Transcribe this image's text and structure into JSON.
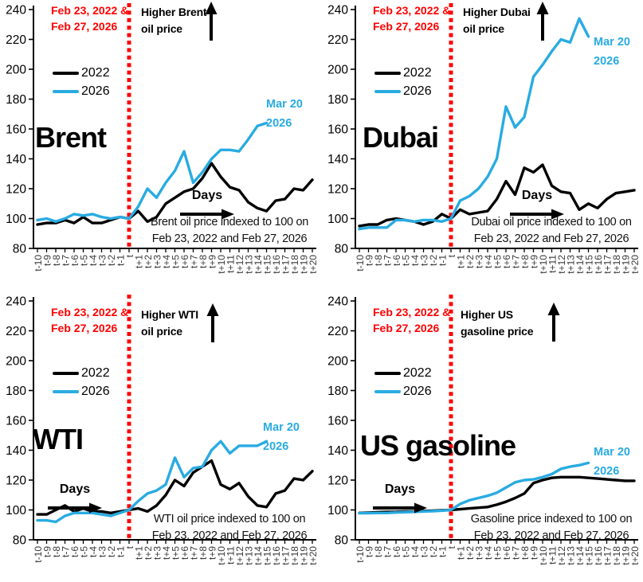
{
  "colors": {
    "line_2022": "#000000",
    "line_2026": "#29abe2",
    "event_red": "#ff0000",
    "axis": "#000000",
    "x_tick_label": "#3a3a3a"
  },
  "chart_data": [
    {
      "type": "line",
      "title": "Brent",
      "x": [
        "t-10",
        "t-9",
        "t-8",
        "t-7",
        "t-6",
        "t-5",
        "t-4",
        "t-3",
        "t-2",
        "t-1",
        "t",
        "t+1",
        "t+2",
        "t+3",
        "t+4",
        "t+5",
        "t+6",
        "t+7",
        "t+8",
        "t+9",
        "t+10",
        "t+11",
        "t+12",
        "t+13",
        "t+14",
        "t+15",
        "t+16",
        "t+17",
        "t+18",
        "t+19",
        "t+20"
      ],
      "xlabel": "Days",
      "ylim": [
        80,
        240
      ],
      "yticks": [
        80,
        100,
        120,
        140,
        160,
        180,
        200,
        220,
        240
      ],
      "legend_position": "upper-left",
      "grid": false,
      "event_line_x": "t",
      "event_line_color": "#ff0000",
      "series": [
        {
          "name": "2022",
          "color": "#000000",
          "values": [
            96,
            97,
            97,
            99,
            97,
            101,
            97,
            97,
            99,
            101,
            100,
            105,
            98,
            101,
            110,
            114,
            118,
            120,
            127,
            137,
            128,
            121,
            119,
            111,
            107,
            105,
            112,
            113,
            120,
            119,
            126
          ]
        },
        {
          "name": "2026",
          "color": "#29abe2",
          "values": [
            99,
            100,
            98,
            100,
            103,
            102,
            103,
            101,
            100,
            101,
            100,
            108,
            120,
            114,
            124,
            132,
            145,
            124,
            131,
            140,
            146,
            146,
            145,
            153,
            162,
            164
          ]
        }
      ]
    },
    {
      "type": "line",
      "title": "Dubai",
      "x": [
        "t-10",
        "t-9",
        "t-8",
        "t-7",
        "t-6",
        "t-5",
        "t-4",
        "t-3",
        "t-2",
        "t-1",
        "t",
        "t+1",
        "t+2",
        "t+3",
        "t+4",
        "t+5",
        "t+6",
        "t+7",
        "t+8",
        "t+9",
        "t+10",
        "t+11",
        "t+12",
        "t+13",
        "t+14",
        "t+15",
        "t+16",
        "t+17",
        "t+18",
        "t+19",
        "t+20"
      ],
      "xlabel": "Days",
      "ylim": [
        80,
        240
      ],
      "yticks": [
        80,
        100,
        120,
        140,
        160,
        180,
        200,
        220,
        240
      ],
      "legend_position": "upper-left",
      "grid": false,
      "event_line_x": "t",
      "event_line_color": "#ff0000",
      "series": [
        {
          "name": "2022",
          "color": "#000000",
          "values": [
            95,
            96,
            96,
            99,
            100,
            99,
            98,
            96,
            98,
            103,
            100,
            106,
            103,
            104,
            105,
            113,
            125,
            116,
            134,
            131,
            136,
            122,
            118,
            117,
            106,
            110,
            107,
            113,
            117,
            118,
            119
          ]
        },
        {
          "name": "2026",
          "color": "#29abe2",
          "values": [
            93,
            94,
            94,
            94,
            99,
            99,
            98,
            99,
            99,
            98,
            100,
            112,
            115,
            120,
            128,
            140,
            175,
            161,
            168,
            195,
            203,
            212,
            220,
            218,
            234,
            222
          ]
        }
      ]
    },
    {
      "type": "line",
      "title": "WTI",
      "x": [
        "t-10",
        "t-9",
        "t-8",
        "t-7",
        "t-6",
        "t-5",
        "t-4",
        "t-3",
        "t-2",
        "t-1",
        "t",
        "t+1",
        "t+2",
        "t+3",
        "t+4",
        "t+5",
        "t+6",
        "t+7",
        "t+8",
        "t+9",
        "t+10",
        "t+11",
        "t+12",
        "t+13",
        "t+14",
        "t+15",
        "t+16",
        "t+17",
        "t+18",
        "t+19",
        "t+20"
      ],
      "xlabel": "Days",
      "ylim": [
        80,
        240
      ],
      "yticks": [
        80,
        100,
        120,
        140,
        160,
        180,
        200,
        220,
        240
      ],
      "legend_position": "upper-left",
      "grid": false,
      "event_line_x": "t",
      "event_line_color": "#ff0000",
      "series": [
        {
          "name": "2022",
          "color": "#000000",
          "values": [
            97,
            97,
            100,
            103,
            99,
            101,
            99,
            99,
            98,
            99,
            100,
            101,
            99,
            103,
            110,
            120,
            116,
            125,
            129,
            133,
            117,
            114,
            118,
            109,
            103,
            102,
            111,
            113,
            121,
            120,
            126
          ]
        },
        {
          "name": "2026",
          "color": "#29abe2",
          "values": [
            93,
            93,
            92,
            96,
            98,
            98,
            98,
            97,
            96,
            98,
            100,
            106,
            111,
            113,
            117,
            135,
            122,
            128,
            129,
            140,
            146,
            138,
            143,
            143,
            143,
            146
          ]
        }
      ]
    },
    {
      "type": "line",
      "title": "US gasoline",
      "x": [
        "t-10",
        "t-9",
        "t-8",
        "t-7",
        "t-6",
        "t-5",
        "t-4",
        "t-3",
        "t-2",
        "t-1",
        "t",
        "t+1",
        "t+2",
        "t+3",
        "t+4",
        "t+5",
        "t+6",
        "t+7",
        "t+8",
        "t+9",
        "t+10",
        "t+11",
        "t+12",
        "t+13",
        "t+14",
        "t+15",
        "t+16",
        "t+17",
        "t+18",
        "t+19",
        "t+20"
      ],
      "xlabel": "Days",
      "ylim": [
        80,
        240
      ],
      "yticks": [
        80,
        100,
        120,
        140,
        160,
        180,
        200,
        220,
        240
      ],
      "legend_position": "upper-left",
      "grid": false,
      "event_line_x": "t",
      "event_line_color": "#ff0000",
      "series": [
        {
          "name": "2022",
          "color": "#000000",
          "values": [
            98,
            98.2,
            98.5,
            98.7,
            98.8,
            99,
            99,
            99.3,
            99.5,
            99.8,
            100,
            100.5,
            101,
            101.5,
            102,
            103.5,
            105.5,
            108,
            111,
            118,
            120,
            121.5,
            122,
            122,
            122,
            121.5,
            121,
            120.5,
            120,
            119.5,
            119.5
          ]
        },
        {
          "name": "2026",
          "color": "#29abe2",
          "values": [
            97.8,
            97.8,
            98,
            98,
            98.3,
            98.5,
            98.7,
            99,
            99.2,
            99.5,
            100,
            104,
            106.5,
            108,
            109.5,
            111.5,
            115,
            118.5,
            120,
            120.5,
            122,
            124,
            127.5,
            129,
            130,
            131.5
          ]
        }
      ]
    }
  ],
  "annotations": [
    {
      "event_line1": "Feb 23, 2022 &",
      "event_line2": "Feb 27, 2026",
      "higher_line1": "Higher Brent",
      "higher_line2": "oil price",
      "mar_line1": "Mar 20",
      "mar_line2": "2026",
      "days_label": "Days",
      "caption_line1": "Brent oil price indexed to 100 on",
      "caption_line2": "Feb 23, 2022 and Feb 27, 2026"
    },
    {
      "event_line1": "Feb 23, 2022 &",
      "event_line2": "Feb 27, 2026",
      "higher_line1": "Higher Dubai",
      "higher_line2": "oil price",
      "mar_line1": "Mar 20",
      "mar_line2": "2026",
      "days_label": "Days",
      "caption_line1": "Dubai oil price indexed to 100 on",
      "caption_line2": "Feb 23, 2022 and Feb 27, 2026"
    },
    {
      "event_line1": "Feb 23, 2022 &",
      "event_line2": "Feb 27, 2026",
      "higher_line1": "Higher WTI",
      "higher_line2": "oil price",
      "mar_line1": "Mar 20",
      "mar_line2": "2026",
      "days_label": "Days",
      "caption_line1": "WTI oil price indexed to 100 on",
      "caption_line2": "Feb 23, 2022 and Feb 27, 2026"
    },
    {
      "event_line1": "Feb 23, 2022 &",
      "event_line2": "Feb 27, 2026",
      "higher_line1": "Higher US",
      "higher_line2": "gasoline price",
      "mar_line1": "Mar 20",
      "mar_line2": "2026",
      "days_label": "Days",
      "caption_line1": "Gasoline price indexed to 100 on",
      "caption_line2": "Feb 23, 2022 and Feb 27, 2026"
    }
  ]
}
